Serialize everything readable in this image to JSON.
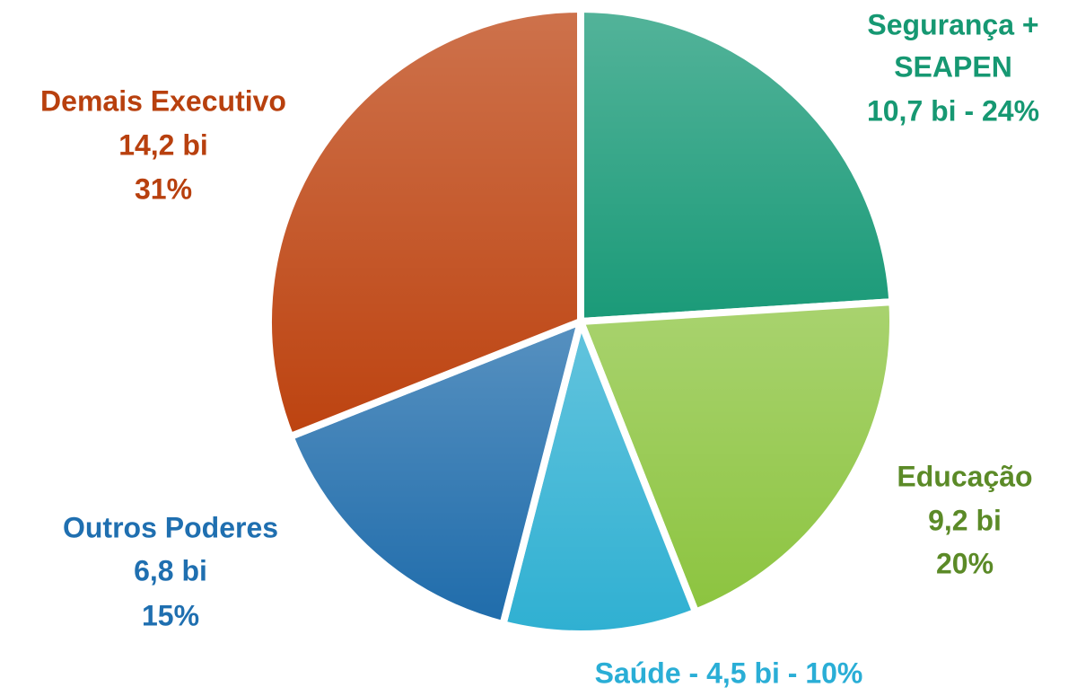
{
  "chart_data": {
    "type": "pie",
    "categories": [
      "Segurança + SEAPEN",
      "Educação",
      "Saúde",
      "Outros Poderes",
      "Demais Executivo"
    ],
    "values": [
      24,
      20,
      10,
      15,
      31
    ],
    "value_labels": [
      [
        "Segurança +",
        "SEAPEN",
        "10,7 bi - 24%"
      ],
      [
        "Educação",
        "9,2 bi",
        "20%"
      ],
      [
        "Saúde - 4,5 bi - 10%"
      ],
      [
        "Outros Poderes",
        "6,8 bi",
        "15%"
      ],
      [
        "Demais Executivo",
        "14,2  bi",
        "31%"
      ]
    ],
    "colors": [
      "#1a9a78",
      "#8cc43f",
      "#2fb0d2",
      "#1f6cab",
      "#bd4310"
    ],
    "label_colors": [
      "#169872",
      "#5b8a27",
      "#2aaed6",
      "#1f6fb0",
      "#b8400e"
    ]
  }
}
